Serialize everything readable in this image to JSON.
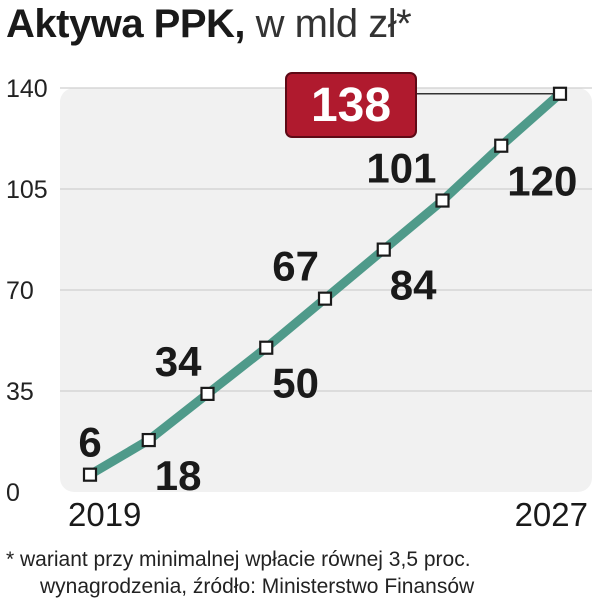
{
  "title": {
    "main": "Aktywa PPK,",
    "unit": "w mld zł*"
  },
  "footnote": {
    "line1": "* wariant przy minimalnej wpłacie równej 3,5 proc.",
    "line2": "wynagrodzenia, źródło: Ministerstwo Finansów"
  },
  "colors": {
    "line": "#4f9a8a",
    "highlight": "#b01a2e",
    "plot_bg": "#f1f1f1",
    "text": "#1a1a1a"
  },
  "chart_data": {
    "type": "line",
    "x": [
      2019,
      2020,
      2021,
      2022,
      2023,
      2024,
      2025,
      2026,
      2027
    ],
    "series": [
      {
        "values": [
          6,
          18,
          34,
          50,
          67,
          84,
          101,
          120,
          138
        ]
      }
    ],
    "data_labels": [
      "6",
      "18",
      "34",
      "50",
      "67",
      "84",
      "101",
      "120",
      "138"
    ],
    "x_tick_labels": [
      "2019",
      "2027"
    ],
    "yticks": [
      0,
      35,
      70,
      105,
      140
    ],
    "ylim": [
      0,
      140
    ],
    "highlight_label": "138",
    "grid": true
  }
}
